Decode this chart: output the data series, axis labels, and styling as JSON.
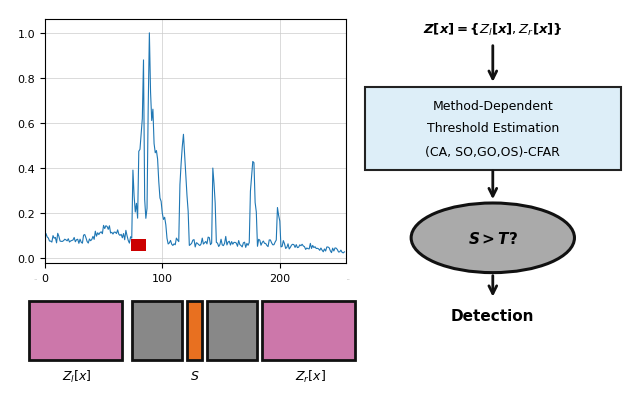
{
  "line_color": "#1f77b4",
  "red_color": "#cc0000",
  "pink_color": "#cc77aa",
  "gray_color": "#888888",
  "orange_color": "#e87020",
  "box_bg": "#ddeef8",
  "arrow_color": "#111111",
  "eq_text": "$\\boldsymbol{Z[x] = \\{Z_l[x], Z_r[x]\\}}$",
  "box_line1": "Method-Dependent",
  "box_line2": "Threshold Estimation",
  "box_line3": "(CA, SO,GO,OS)-CFAR",
  "ellipse_text": "$\\boldsymbol{S > T?}$",
  "detect_text": "Detection",
  "label_zl": "$Z_l[x]$",
  "label_s": "$S$",
  "label_zr": "$Z_r[x]$",
  "plot_xticks": [
    0,
    100,
    200
  ],
  "plot_yticks": [
    0.0,
    0.2,
    0.4,
    0.6,
    0.8,
    1.0
  ]
}
